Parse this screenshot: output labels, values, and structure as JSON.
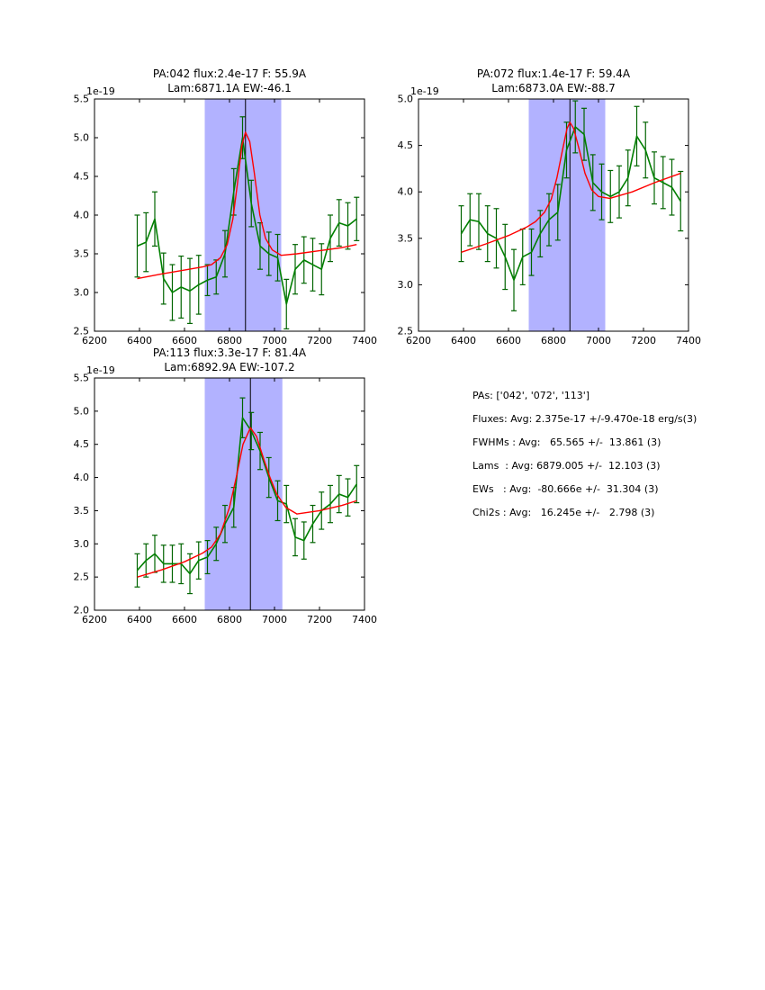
{
  "figure": {
    "background": "#ffffff"
  },
  "colors": {
    "axes": "#000000",
    "tick_label": "#000000",
    "title": "#000000",
    "data_line": "#008000",
    "error_bar": "#006400",
    "fit_line": "#ff0000",
    "band": "#0000ff",
    "band_alpha": 0.3,
    "vline": "#000000",
    "background": "#ffffff"
  },
  "stats": {
    "lines": [
      "PAs: ['042', '072', '113']",
      "Fluxes: Avg: 2.375e-17 +/-9.470e-18 erg/s(3)",
      "FWHMs : Avg:   65.565 +/-  13.861 (3)",
      "Lams  : Avg: 6879.005 +/-  12.103 (3)",
      "EWs   : Avg:  -80.666e +/-  31.304 (3)",
      "Chi2s : Avg:   16.245e +/-   2.798 (3)"
    ]
  },
  "chart_data": [
    {
      "id": "pa042",
      "type": "line",
      "title": "PA:042 flux:2.4e-17 F: 55.9A",
      "subtitle": "Lam:6871.1A EW:-46.1",
      "offset_label": "1e-19",
      "xlim": [
        6200,
        7400
      ],
      "ylim": [
        2.5,
        5.5
      ],
      "xticks": [
        6200,
        6400,
        6600,
        6800,
        7000,
        7200,
        7400
      ],
      "yticks": [
        2.5,
        3.0,
        3.5,
        4.0,
        4.5,
        5.0,
        5.5
      ],
      "band": [
        6690,
        7030
      ],
      "vline": 6871.1,
      "grid": false,
      "legend": "none",
      "series": [
        {
          "name": "data",
          "x": [
            6390,
            6429,
            6468,
            6507,
            6546,
            6585,
            6624,
            6663,
            6702,
            6741,
            6780,
            6819,
            6858,
            6897,
            6936,
            6975,
            7014,
            7053,
            7092,
            7131,
            7170,
            7209,
            7248,
            7287,
            7326,
            7365
          ],
          "y": [
            3.6,
            3.65,
            3.95,
            3.18,
            3.0,
            3.07,
            3.02,
            3.1,
            3.16,
            3.2,
            3.5,
            4.3,
            5.0,
            4.15,
            3.6,
            3.5,
            3.45,
            2.85,
            3.3,
            3.42,
            3.36,
            3.3,
            3.7,
            3.9,
            3.86,
            3.95
          ],
          "yerr": [
            0.4,
            0.38,
            0.35,
            0.33,
            0.36,
            0.4,
            0.42,
            0.38,
            0.2,
            0.22,
            0.3,
            0.3,
            0.27,
            0.3,
            0.3,
            0.28,
            0.3,
            0.32,
            0.32,
            0.3,
            0.34,
            0.33,
            0.3,
            0.3,
            0.3,
            0.28
          ]
        },
        {
          "name": "fit",
          "x": [
            6390,
            6500,
            6600,
            6680,
            6720,
            6760,
            6790,
            6815,
            6835,
            6855,
            6871,
            6890,
            6910,
            6935,
            6960,
            6990,
            7030,
            7100,
            7200,
            7300,
            7365
          ],
          "y": [
            3.18,
            3.24,
            3.29,
            3.33,
            3.36,
            3.45,
            3.62,
            3.95,
            4.4,
            4.9,
            5.07,
            4.95,
            4.55,
            4.0,
            3.7,
            3.55,
            3.48,
            3.5,
            3.54,
            3.58,
            3.62
          ]
        }
      ]
    },
    {
      "id": "pa072",
      "type": "line",
      "title": "PA:072 flux:1.4e-17 F: 59.4A",
      "subtitle": "Lam:6873.0A EW:-88.7",
      "offset_label": "1e-19",
      "xlim": [
        6200,
        7400
      ],
      "ylim": [
        2.5,
        5.0
      ],
      "xticks": [
        6200,
        6400,
        6600,
        6800,
        7000,
        7200,
        7400
      ],
      "yticks": [
        2.5,
        3.0,
        3.5,
        4.0,
        4.5,
        5.0
      ],
      "band": [
        6690,
        7030
      ],
      "vline": 6873.0,
      "grid": false,
      "legend": "none",
      "series": [
        {
          "name": "data",
          "x": [
            6390,
            6429,
            6468,
            6507,
            6546,
            6585,
            6624,
            6663,
            6702,
            6741,
            6780,
            6819,
            6858,
            6897,
            6936,
            6975,
            7014,
            7053,
            7092,
            7131,
            7170,
            7209,
            7248,
            7287,
            7326,
            7365
          ],
          "y": [
            3.55,
            3.7,
            3.68,
            3.55,
            3.5,
            3.3,
            3.05,
            3.3,
            3.35,
            3.55,
            3.7,
            3.78,
            4.45,
            4.7,
            4.62,
            4.1,
            4.0,
            3.95,
            4.0,
            4.15,
            4.6,
            4.45,
            4.15,
            4.1,
            4.05,
            3.9
          ],
          "yerr": [
            0.3,
            0.28,
            0.3,
            0.3,
            0.32,
            0.35,
            0.33,
            0.3,
            0.25,
            0.25,
            0.28,
            0.3,
            0.3,
            0.28,
            0.28,
            0.3,
            0.3,
            0.28,
            0.28,
            0.3,
            0.32,
            0.3,
            0.28,
            0.28,
            0.3,
            0.32
          ]
        },
        {
          "name": "fit",
          "x": [
            6390,
            6500,
            6600,
            6680,
            6720,
            6760,
            6790,
            6815,
            6840,
            6860,
            6873,
            6890,
            6915,
            6940,
            6970,
            7000,
            7050,
            7150,
            7250,
            7365
          ],
          "y": [
            3.35,
            3.44,
            3.53,
            3.62,
            3.68,
            3.78,
            3.92,
            4.15,
            4.45,
            4.68,
            4.75,
            4.68,
            4.45,
            4.2,
            4.02,
            3.95,
            3.93,
            4.0,
            4.1,
            4.2
          ]
        }
      ]
    },
    {
      "id": "pa113",
      "type": "line",
      "title": "PA:113 flux:3.3e-17 F: 81.4A",
      "subtitle": "Lam:6892.9A EW:-107.2",
      "offset_label": "1e-19",
      "xlim": [
        6200,
        7400
      ],
      "ylim": [
        2.0,
        5.5
      ],
      "xticks": [
        6200,
        6400,
        6600,
        6800,
        7000,
        7200,
        7400
      ],
      "yticks": [
        2.0,
        2.5,
        3.0,
        3.5,
        4.0,
        4.5,
        5.0,
        5.5
      ],
      "band": [
        6690,
        7035
      ],
      "vline": 6892.9,
      "grid": false,
      "legend": "none",
      "series": [
        {
          "name": "data",
          "x": [
            6390,
            6429,
            6468,
            6507,
            6546,
            6585,
            6624,
            6663,
            6702,
            6741,
            6780,
            6819,
            6858,
            6897,
            6936,
            6975,
            7014,
            7053,
            7092,
            7131,
            7170,
            7209,
            7248,
            7287,
            7326,
            7365
          ],
          "y": [
            2.6,
            2.75,
            2.85,
            2.7,
            2.7,
            2.7,
            2.55,
            2.75,
            2.8,
            3.0,
            3.3,
            3.55,
            4.9,
            4.7,
            4.4,
            4.0,
            3.65,
            3.6,
            3.1,
            3.05,
            3.3,
            3.5,
            3.6,
            3.75,
            3.7,
            3.9
          ],
          "yerr": [
            0.25,
            0.25,
            0.28,
            0.28,
            0.28,
            0.3,
            0.3,
            0.28,
            0.25,
            0.25,
            0.28,
            0.3,
            0.3,
            0.28,
            0.28,
            0.3,
            0.3,
            0.28,
            0.28,
            0.28,
            0.28,
            0.28,
            0.28,
            0.28,
            0.28,
            0.28
          ]
        },
        {
          "name": "fit",
          "x": [
            6390,
            6500,
            6600,
            6680,
            6720,
            6760,
            6800,
            6830,
            6860,
            6893,
            6920,
            6950,
            6980,
            7010,
            7050,
            7100,
            7200,
            7300,
            7365
          ],
          "y": [
            2.5,
            2.61,
            2.73,
            2.86,
            2.95,
            3.15,
            3.55,
            4.0,
            4.5,
            4.75,
            4.62,
            4.3,
            4.0,
            3.75,
            3.55,
            3.45,
            3.5,
            3.58,
            3.65
          ]
        }
      ]
    }
  ]
}
